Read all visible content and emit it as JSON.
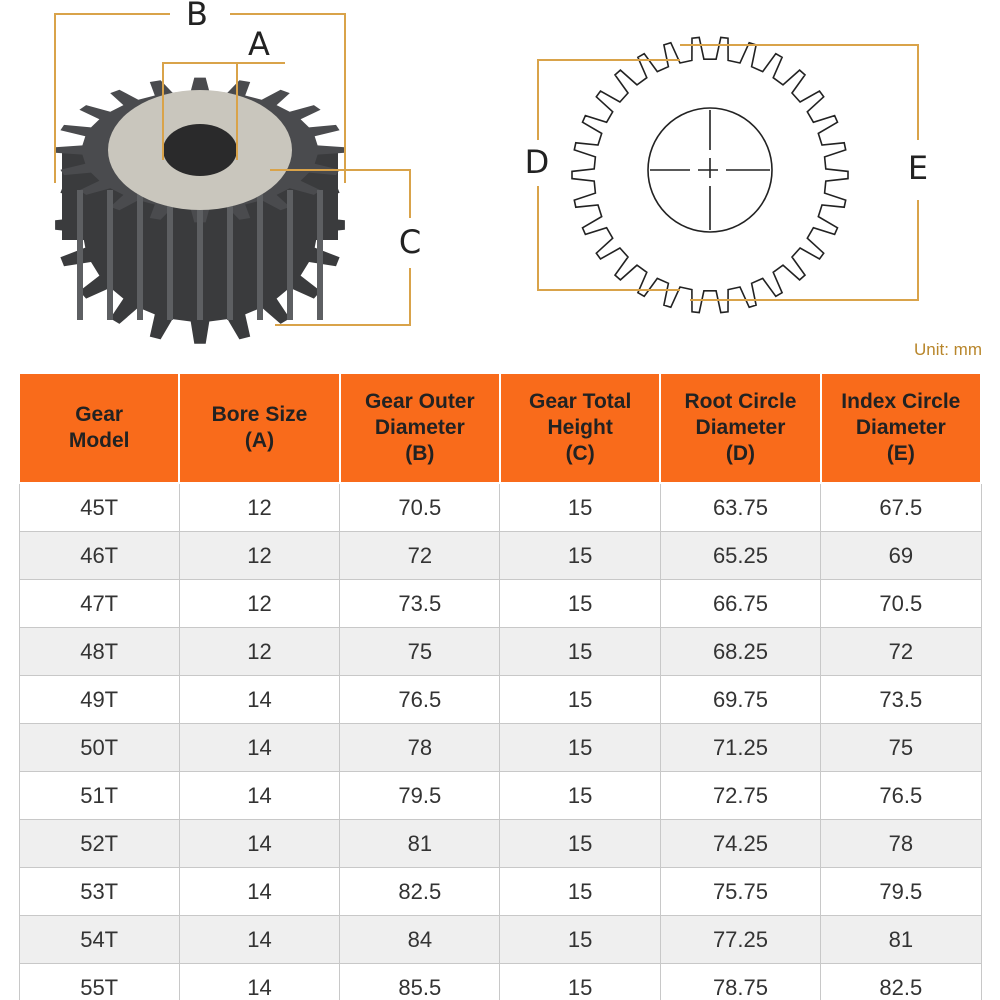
{
  "labels": {
    "b": "B",
    "a": "A",
    "c": "C",
    "d": "D",
    "e": "E"
  },
  "unit": "Unit: mm",
  "table": {
    "header": [
      [
        "Gear",
        "Model"
      ],
      [
        "Bore Size",
        "(A)"
      ],
      [
        "Gear Outer",
        "Diameter",
        "(B)"
      ],
      [
        "Gear Total",
        "Height",
        "(C)"
      ],
      [
        "Root Circle",
        "Diameter",
        "(D)"
      ],
      [
        "Index Circle",
        "Diameter",
        "(E)"
      ]
    ],
    "rows": [
      [
        "45T",
        "12",
        "70.5",
        "15",
        "63.75",
        "67.5"
      ],
      [
        "46T",
        "12",
        "72",
        "15",
        "65.25",
        "69"
      ],
      [
        "47T",
        "12",
        "73.5",
        "15",
        "66.75",
        "70.5"
      ],
      [
        "48T",
        "12",
        "75",
        "15",
        "68.25",
        "72"
      ],
      [
        "49T",
        "14",
        "76.5",
        "15",
        "69.75",
        "73.5"
      ],
      [
        "50T",
        "14",
        "78",
        "15",
        "71.25",
        "75"
      ],
      [
        "51T",
        "14",
        "79.5",
        "15",
        "72.75",
        "76.5"
      ],
      [
        "52T",
        "14",
        "81",
        "15",
        "74.25",
        "78"
      ],
      [
        "53T",
        "14",
        "82.5",
        "15",
        "75.75",
        "79.5"
      ],
      [
        "54T",
        "14",
        "84",
        "15",
        "77.25",
        "81"
      ],
      [
        "55T",
        "14",
        "85.5",
        "15",
        "78.75",
        "82.5"
      ]
    ]
  }
}
